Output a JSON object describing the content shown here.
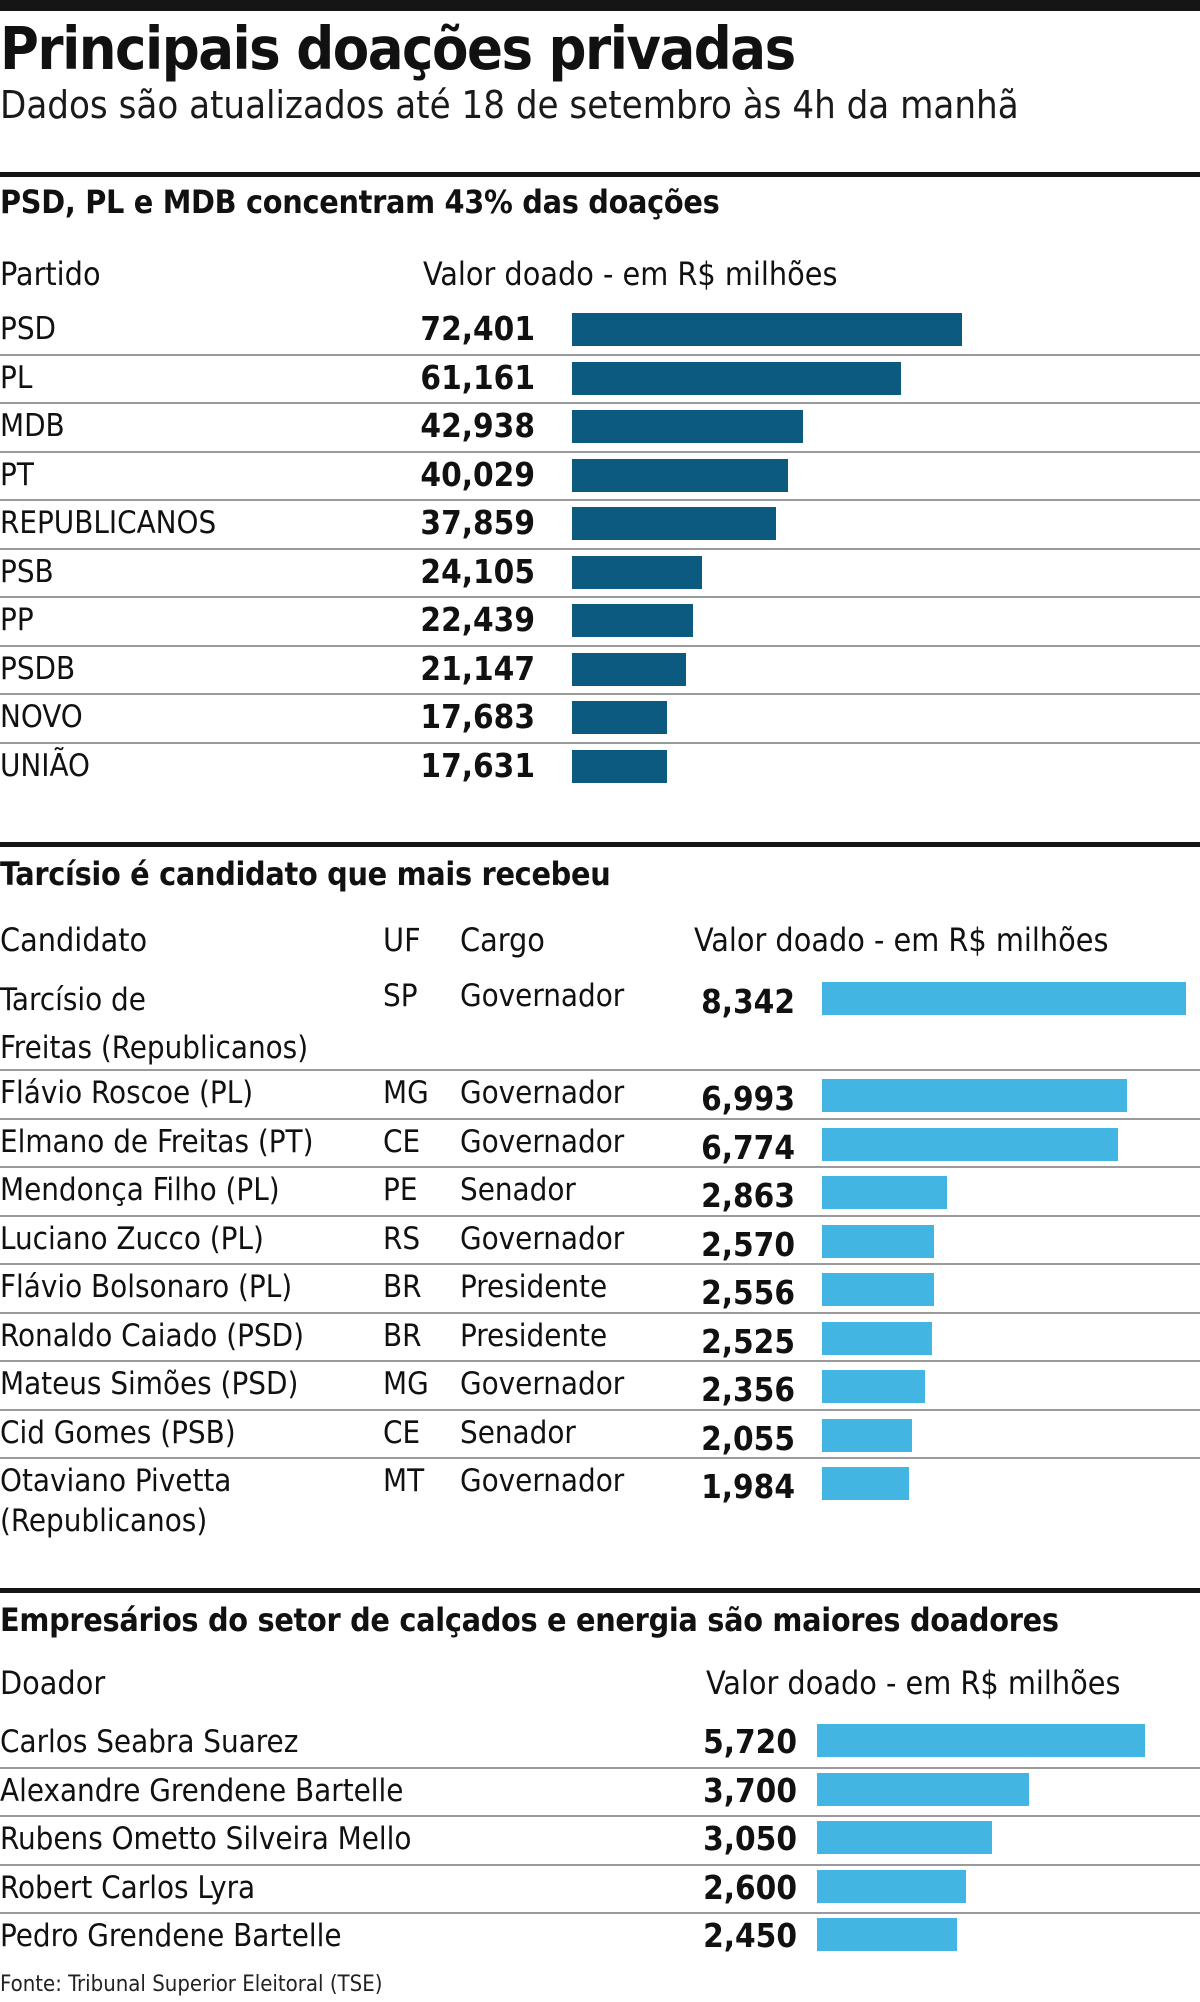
{
  "header": {
    "title": "Principais doações privadas",
    "subtitle": "Dados são atualizados até 18 de setembro às 4h da manhã"
  },
  "chart_data": [
    {
      "type": "bar",
      "orientation": "horizontal",
      "title": "PSD, PL e MDB concentram 43% das doações",
      "col_label": "Partido",
      "value_label": "Valor doado - em R$ milhões",
      "categories": [
        "PSD",
        "PL",
        "MDB",
        "PT",
        "REPUBLICANOS",
        "PSB",
        "PP",
        "PSDB",
        "NOVO",
        "UNIÃO"
      ],
      "values": [
        72.401,
        61.161,
        42.938,
        40.029,
        37.859,
        24.105,
        22.439,
        21.147,
        17.683,
        17.631
      ],
      "value_text": [
        "72,401",
        "61,161",
        "42,938",
        "40,029",
        "37,859",
        "24,105",
        "22,439",
        "21,147",
        "17,683",
        "17,631"
      ],
      "bar_color": "#0d5a80"
    },
    {
      "type": "bar",
      "orientation": "horizontal",
      "title": "Tarcísio é candidato que mais recebeu",
      "col_label": "Candidato",
      "uf_label": "UF",
      "cargo_label": "Cargo",
      "value_label": "Valor doado - em R$ milhões",
      "categories": [
        "Tarcísio de Freitas (Republicanos)",
        "Flávio Roscoe (PL)",
        "Elmano de Freitas (PT)",
        "Mendonça Filho (PL)",
        "Luciano Zucco (PL)",
        "Flávio Bolsonaro (PL)",
        "Ronaldo Caiado (PSD)",
        "Mateus Simões (PSD)",
        "Cid Gomes (PSB)",
        "Otaviano Pivetta (Republicanos)"
      ],
      "name_lines": [
        [
          "Tarcísio de",
          "Freitas (Republicanos)"
        ],
        [
          "Flávio Roscoe (PL)"
        ],
        [
          "Elmano de Freitas (PT)"
        ],
        [
          "Mendonça Filho (PL)"
        ],
        [
          "Luciano Zucco (PL)"
        ],
        [
          "Flávio Bolsonaro (PL)"
        ],
        [
          "Ronaldo Caiado (PSD)"
        ],
        [
          "Mateus Simões (PSD)"
        ],
        [
          "Cid Gomes (PSB)"
        ],
        [
          "Otaviano Pivetta",
          "(Republicanos)"
        ]
      ],
      "uf": [
        "SP",
        "MG",
        "CE",
        "PE",
        "RS",
        "BR",
        "BR",
        "MG",
        "CE",
        "MT"
      ],
      "cargo": [
        "Governador",
        "Governador",
        "Governador",
        "Senador",
        "Governador",
        "Presidente",
        "Presidente",
        "Governador",
        "Senador",
        "Governador"
      ],
      "values": [
        8.342,
        6.993,
        6.774,
        2.863,
        2.57,
        2.556,
        2.525,
        2.356,
        2.055,
        1.984
      ],
      "value_text": [
        "8,342",
        "6,993",
        "6,774",
        "2,863",
        "2,570",
        "2,556",
        "2,525",
        "2,356",
        "2,055",
        "1,984"
      ],
      "bar_color": "#43b5e2"
    },
    {
      "type": "bar",
      "orientation": "horizontal",
      "title": "Empresários do setor de calçados e energia são maiores doadores",
      "col_label": "Doador",
      "value_label": "Valor doado - em R$ milhões",
      "categories": [
        "Carlos Seabra Suarez",
        "Alexandre Grendene Bartelle",
        "Rubens Ometto Silveira Mello",
        "Robert Carlos Lyra",
        "Pedro Grendene Bartelle"
      ],
      "values": [
        5.72,
        3.7,
        3.05,
        2.6,
        2.45
      ],
      "value_text": [
        "5,720",
        "3,700",
        "3,050",
        "2,600",
        "2,450"
      ],
      "bar_color": "#43b5e2"
    }
  ],
  "footer": {
    "source": "Fonte: Tribunal Superior Eleitoral (TSE)"
  }
}
